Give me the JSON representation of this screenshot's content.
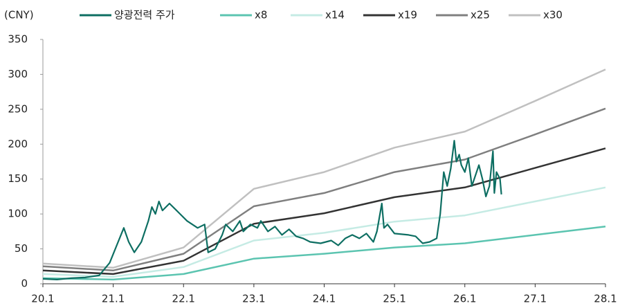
{
  "chart_data": {
    "type": "line",
    "y_label": "(CNY)",
    "xlim": [
      20,
      28
    ],
    "xticks": [
      {
        "value": 20,
        "label": "20.1"
      },
      {
        "value": 21,
        "label": "21.1"
      },
      {
        "value": 22,
        "label": "22.1"
      },
      {
        "value": 23,
        "label": "23.1"
      },
      {
        "value": 24,
        "label": "24.1"
      },
      {
        "value": 25,
        "label": "25.1"
      },
      {
        "value": 26,
        "label": "26.1"
      },
      {
        "value": 27,
        "label": "27.1"
      },
      {
        "value": 28,
        "label": "28.1"
      }
    ],
    "ylim": [
      0,
      350
    ],
    "yticks": [
      0,
      50,
      100,
      150,
      200,
      250,
      300,
      350
    ],
    "series": [
      {
        "name": "양광전력 주가",
        "color": "#0d6e62",
        "x": [
          20.0,
          20.2,
          20.4,
          20.6,
          20.8,
          20.95,
          21.05,
          21.15,
          21.22,
          21.3,
          21.4,
          21.5,
          21.55,
          21.6,
          21.65,
          21.7,
          21.8,
          21.95,
          22.05,
          22.2,
          22.3,
          22.35,
          22.45,
          22.55,
          22.6,
          22.7,
          22.8,
          22.85,
          22.95,
          23.05,
          23.1,
          23.2,
          23.3,
          23.4,
          23.5,
          23.6,
          23.7,
          23.8,
          23.95,
          24.1,
          24.2,
          24.3,
          24.4,
          24.5,
          24.6,
          24.7,
          24.75,
          24.82,
          24.85,
          24.9,
          25.0,
          25.2,
          25.3,
          25.4,
          25.5,
          25.6,
          25.65,
          25.7,
          25.75,
          25.8,
          25.85,
          25.88,
          25.92,
          25.95,
          26.0,
          26.05,
          26.1,
          26.15,
          26.2,
          26.25,
          26.3,
          26.35,
          26.4,
          26.42,
          26.45,
          26.5,
          26.52
        ],
        "values": [
          7,
          6,
          8,
          9,
          12,
          30,
          55,
          80,
          60,
          45,
          60,
          90,
          110,
          100,
          118,
          105,
          115,
          100,
          90,
          80,
          85,
          45,
          50,
          70,
          85,
          75,
          90,
          75,
          85,
          80,
          90,
          75,
          82,
          70,
          78,
          68,
          65,
          60,
          58,
          62,
          55,
          65,
          70,
          65,
          72,
          60,
          75,
          115,
          80,
          85,
          72,
          70,
          68,
          58,
          60,
          65,
          100,
          160,
          140,
          165,
          205,
          175,
          185,
          170,
          160,
          180,
          140,
          155,
          170,
          150,
          125,
          140,
          190,
          130,
          160,
          150,
          128
        ]
      },
      {
        "name": "x8",
        "color": "#5bc4b0",
        "x": [
          20,
          21,
          22,
          23,
          24,
          25,
          26,
          27,
          28
        ],
        "values": [
          8,
          6,
          14,
          36,
          43,
          52,
          58,
          70,
          82
        ]
      },
      {
        "name": "x14",
        "color": "#c5ebe4",
        "x": [
          20,
          21,
          22,
          23,
          24,
          25,
          26,
          27,
          28
        ],
        "values": [
          14,
          10,
          24,
          62,
          73,
          89,
          98,
          118,
          138
        ]
      },
      {
        "name": "x19",
        "color": "#333333",
        "x": [
          20,
          21,
          22,
          23,
          24,
          25,
          26,
          27,
          28
        ],
        "values": [
          19,
          14,
          33,
          86,
          101,
          124,
          138,
          166,
          194
        ]
      },
      {
        "name": "x25",
        "color": "#7f7f7f",
        "x": [
          20,
          21,
          22,
          23,
          24,
          25,
          26,
          27,
          28
        ],
        "values": [
          25,
          19,
          43,
          111,
          130,
          160,
          178,
          214,
          251
        ]
      },
      {
        "name": "x30",
        "color": "#c0c0c0",
        "x": [
          20,
          21,
          22,
          23,
          24,
          25,
          26,
          27,
          28
        ],
        "values": [
          29,
          23,
          52,
          136,
          160,
          195,
          218,
          262,
          307
        ]
      }
    ]
  }
}
